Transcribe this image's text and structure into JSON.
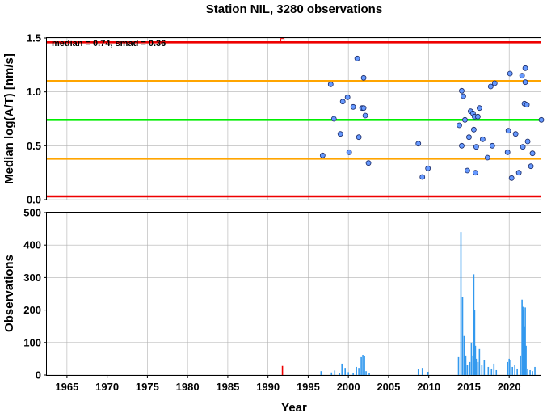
{
  "chart_data": [
    {
      "type": "scatter",
      "title": "Station NIL, 3280 observations",
      "xlabel": "",
      "ylabel": "Median log(A/T) [nm/s]",
      "xlim": [
        1962.5,
        2024
      ],
      "ylim": [
        0,
        1.5
      ],
      "yticks": [
        0.0,
        0.5,
        1.0,
        1.5
      ],
      "yticklabels": [
        "0.0",
        "0.5",
        "1.0",
        "1.5"
      ],
      "xgrid_years": [
        1965,
        1970,
        1975,
        1980,
        1985,
        1990,
        1995,
        2000,
        2005,
        2010,
        2015,
        2020
      ],
      "grid": true,
      "annotation": "median = 0.74, smad = 0.36",
      "reference_lines": [
        {
          "role": "upper-limit",
          "y": 1.46,
          "color": "#ee0000"
        },
        {
          "role": "upper-smad",
          "y": 1.1,
          "color": "#ffa500"
        },
        {
          "role": "median",
          "y": 0.74,
          "color": "#00ee00"
        },
        {
          "role": "lower-smad",
          "y": 0.38,
          "color": "#ffa500"
        },
        {
          "role": "lower-limit",
          "y": 0.03,
          "color": "#ee0000"
        }
      ],
      "outlier_marker": {
        "x": 1991.8,
        "y": 1.48,
        "color": "#ee0000"
      },
      "point_color": "#6699ff",
      "points": [
        [
          1996.8,
          0.41
        ],
        [
          1997.8,
          1.07
        ],
        [
          1998.2,
          0.75
        ],
        [
          1999.0,
          0.61
        ],
        [
          1999.3,
          0.91
        ],
        [
          1999.9,
          0.95
        ],
        [
          2000.1,
          0.44
        ],
        [
          2000.6,
          0.86
        ],
        [
          2001.1,
          1.31
        ],
        [
          2001.3,
          0.58
        ],
        [
          2001.7,
          0.85
        ],
        [
          2001.9,
          1.13
        ],
        [
          2001.9,
          0.85
        ],
        [
          2002.1,
          0.78
        ],
        [
          2002.5,
          0.34
        ],
        [
          2008.7,
          0.52
        ],
        [
          2009.2,
          0.21
        ],
        [
          2009.9,
          0.29
        ],
        [
          2013.8,
          0.69
        ],
        [
          2014.1,
          1.01
        ],
        [
          2014.1,
          0.5
        ],
        [
          2014.3,
          0.96
        ],
        [
          2014.5,
          0.74
        ],
        [
          2014.8,
          0.27
        ],
        [
          2015.0,
          0.58
        ],
        [
          2015.2,
          0.82
        ],
        [
          2015.5,
          0.8
        ],
        [
          2015.6,
          0.65
        ],
        [
          2015.7,
          0.77
        ],
        [
          2015.8,
          0.25
        ],
        [
          2015.9,
          0.49
        ],
        [
          2016.1,
          0.77
        ],
        [
          2016.3,
          0.85
        ],
        [
          2016.7,
          0.56
        ],
        [
          2017.3,
          0.39
        ],
        [
          2017.7,
          1.05
        ],
        [
          2017.9,
          0.5
        ],
        [
          2018.2,
          1.08
        ],
        [
          2019.8,
          0.44
        ],
        [
          2019.9,
          0.64
        ],
        [
          2020.1,
          1.17
        ],
        [
          2020.3,
          0.2
        ],
        [
          2020.8,
          0.61
        ],
        [
          2021.2,
          0.25
        ],
        [
          2021.6,
          1.15
        ],
        [
          2021.7,
          0.49
        ],
        [
          2021.9,
          0.89
        ],
        [
          2022.0,
          1.09
        ],
        [
          2022.0,
          1.22
        ],
        [
          2022.2,
          0.88
        ],
        [
          2022.3,
          0.54
        ],
        [
          2022.7,
          0.31
        ],
        [
          2022.9,
          0.43
        ],
        [
          2024.0,
          0.74
        ]
      ]
    },
    {
      "type": "bar",
      "xlabel": "Year",
      "ylabel": "Observations",
      "xlim": [
        1962.5,
        2024
      ],
      "ylim": [
        0,
        500
      ],
      "yticks": [
        0,
        100,
        200,
        300,
        400,
        500
      ],
      "xticks": [
        1965,
        1970,
        1975,
        1980,
        1985,
        1990,
        1995,
        2000,
        2005,
        2010,
        2015,
        2020
      ],
      "grid": true,
      "bar_color": "#3399ee",
      "outlier_bar": {
        "x": 1991.8,
        "value": 28,
        "color": "#ee0000"
      },
      "bars": [
        [
          1996.6,
          12
        ],
        [
          1997.9,
          8
        ],
        [
          1998.3,
          14
        ],
        [
          1998.9,
          6
        ],
        [
          1999.2,
          35
        ],
        [
          1999.6,
          22
        ],
        [
          2000.0,
          9
        ],
        [
          2000.6,
          5
        ],
        [
          2001.0,
          25
        ],
        [
          2001.3,
          22
        ],
        [
          2001.6,
          55
        ],
        [
          2001.8,
          62
        ],
        [
          2002.0,
          58
        ],
        [
          2002.2,
          12
        ],
        [
          2002.6,
          5
        ],
        [
          2008.7,
          18
        ],
        [
          2009.2,
          22
        ],
        [
          2009.9,
          10
        ],
        [
          2013.7,
          55
        ],
        [
          2014.0,
          440
        ],
        [
          2014.2,
          240
        ],
        [
          2014.4,
          120
        ],
        [
          2014.6,
          60
        ],
        [
          2014.8,
          30
        ],
        [
          2015.1,
          40
        ],
        [
          2015.3,
          100
        ],
        [
          2015.5,
          60
        ],
        [
          2015.6,
          310
        ],
        [
          2015.7,
          200
        ],
        [
          2015.8,
          90
        ],
        [
          2015.9,
          50
        ],
        [
          2016.1,
          40
        ],
        [
          2016.3,
          80
        ],
        [
          2016.6,
          30
        ],
        [
          2016.9,
          45
        ],
        [
          2017.4,
          25
        ],
        [
          2017.8,
          20
        ],
        [
          2018.1,
          35
        ],
        [
          2018.4,
          15
        ],
        [
          2019.8,
          40
        ],
        [
          2020.0,
          50
        ],
        [
          2020.2,
          45
        ],
        [
          2020.4,
          25
        ],
        [
          2020.7,
          32
        ],
        [
          2021.0,
          20
        ],
        [
          2021.4,
          60
        ],
        [
          2021.6,
          232
        ],
        [
          2021.7,
          210
        ],
        [
          2021.8,
          200
        ],
        [
          2021.9,
          150
        ],
        [
          2022.0,
          208
        ],
        [
          2022.1,
          90
        ],
        [
          2022.3,
          20
        ],
        [
          2022.6,
          15
        ],
        [
          2022.9,
          12
        ],
        [
          2023.2,
          25
        ]
      ]
    }
  ]
}
